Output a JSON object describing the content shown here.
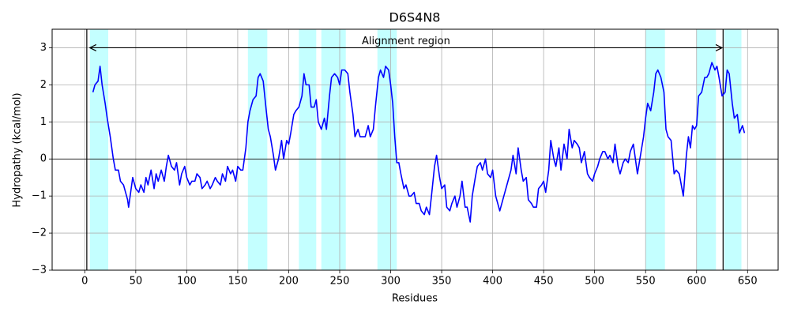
{
  "chart_data": {
    "type": "line",
    "title": "D6S4N8",
    "x_label": "Residues",
    "y_label": "Hydropathy (kcal/mol)",
    "x": [
      8,
      10,
      13,
      15,
      17,
      20,
      22,
      25,
      28,
      30,
      33,
      35,
      38,
      40,
      42,
      43,
      45,
      47,
      50,
      53,
      55,
      58,
      60,
      62,
      65,
      68,
      70,
      72,
      75,
      78,
      80,
      82,
      85,
      88,
      90,
      93,
      95,
      98,
      100,
      103,
      105,
      108,
      110,
      113,
      115,
      118,
      120,
      123,
      125,
      128,
      130,
      133,
      135,
      138,
      140,
      143,
      145,
      148,
      150,
      153,
      155,
      158,
      160,
      162,
      165,
      168,
      170,
      172,
      175,
      178,
      180,
      182,
      185,
      187,
      190,
      193,
      195,
      198,
      200,
      202,
      205,
      207,
      210,
      213,
      215,
      217,
      220,
      222,
      225,
      227,
      229,
      232,
      235,
      237,
      240,
      242,
      245,
      248,
      250,
      252,
      255,
      258,
      260,
      263,
      265,
      268,
      270,
      273,
      275,
      278,
      280,
      283,
      285,
      288,
      290,
      293,
      295,
      298,
      300,
      302,
      304,
      306,
      308,
      310,
      313,
      315,
      318,
      320,
      323,
      325,
      328,
      330,
      333,
      335,
      338,
      340,
      343,
      345,
      348,
      350,
      353,
      355,
      358,
      360,
      363,
      365,
      368,
      370,
      373,
      375,
      378,
      380,
      383,
      385,
      388,
      390,
      393,
      395,
      398,
      400,
      403,
      405,
      407,
      410,
      412,
      415,
      418,
      420,
      423,
      425,
      428,
      430,
      433,
      435,
      438,
      440,
      443,
      445,
      448,
      450,
      452,
      455,
      457,
      460,
      462,
      465,
      467,
      470,
      473,
      475,
      478,
      480,
      483,
      485,
      487,
      490,
      493,
      495,
      498,
      500,
      503,
      505,
      508,
      510,
      513,
      515,
      518,
      520,
      523,
      525,
      528,
      530,
      533,
      535,
      538,
      540,
      542,
      545,
      548,
      550,
      552,
      555,
      558,
      560,
      562,
      565,
      568,
      570,
      572,
      575,
      578,
      580,
      583,
      585,
      587,
      590,
      592,
      594,
      596,
      598,
      600,
      602,
      605,
      608,
      610,
      612,
      615,
      618,
      620,
      622,
      625,
      628,
      630,
      632,
      635,
      637,
      640,
      642,
      645,
      647
    ],
    "values": [
      1.8,
      2.0,
      2.1,
      2.5,
      2.0,
      1.5,
      1.1,
      0.6,
      0.0,
      -0.3,
      -0.3,
      -0.6,
      -0.7,
      -0.9,
      -1.1,
      -1.3,
      -0.9,
      -0.5,
      -0.8,
      -0.9,
      -0.7,
      -0.9,
      -0.5,
      -0.7,
      -0.3,
      -0.8,
      -0.4,
      -0.6,
      -0.3,
      -0.6,
      -0.2,
      0.1,
      -0.2,
      -0.3,
      -0.1,
      -0.7,
      -0.4,
      -0.2,
      -0.5,
      -0.7,
      -0.6,
      -0.6,
      -0.4,
      -0.5,
      -0.8,
      -0.7,
      -0.6,
      -0.8,
      -0.7,
      -0.5,
      -0.6,
      -0.7,
      -0.4,
      -0.6,
      -0.2,
      -0.4,
      -0.3,
      -0.6,
      -0.2,
      -0.3,
      -0.3,
      0.3,
      1.0,
      1.3,
      1.6,
      1.7,
      2.2,
      2.3,
      2.1,
      1.3,
      0.8,
      0.6,
      0.1,
      -0.3,
      0.0,
      0.5,
      0.0,
      0.5,
      0.4,
      0.7,
      1.2,
      1.3,
      1.4,
      1.7,
      2.3,
      2.0,
      2.0,
      1.4,
      1.4,
      1.6,
      1.0,
      0.8,
      1.1,
      0.8,
      1.7,
      2.2,
      2.3,
      2.2,
      2.0,
      2.4,
      2.4,
      2.3,
      1.8,
      1.2,
      0.6,
      0.8,
      0.6,
      0.6,
      0.6,
      0.9,
      0.6,
      0.8,
      1.4,
      2.2,
      2.4,
      2.2,
      2.5,
      2.4,
      2.0,
      1.5,
      0.6,
      -0.1,
      -0.1,
      -0.4,
      -0.8,
      -0.7,
      -1.0,
      -1.0,
      -0.9,
      -1.2,
      -1.2,
      -1.4,
      -1.5,
      -1.3,
      -1.5,
      -1.0,
      -0.2,
      0.1,
      -0.5,
      -0.8,
      -0.7,
      -1.3,
      -1.4,
      -1.2,
      -1.0,
      -1.3,
      -1.0,
      -0.6,
      -1.3,
      -1.3,
      -1.7,
      -1.0,
      -0.5,
      -0.2,
      -0.1,
      -0.3,
      0.0,
      -0.4,
      -0.5,
      -0.3,
      -1.0,
      -1.2,
      -1.4,
      -1.1,
      -0.9,
      -0.6,
      -0.3,
      0.1,
      -0.4,
      0.3,
      -0.3,
      -0.6,
      -0.5,
      -1.1,
      -1.2,
      -1.3,
      -1.3,
      -0.8,
      -0.7,
      -0.6,
      -0.9,
      -0.3,
      0.5,
      0.0,
      -0.2,
      0.3,
      -0.3,
      0.4,
      0.0,
      0.8,
      0.3,
      0.5,
      0.4,
      0.3,
      -0.1,
      0.2,
      -0.4,
      -0.5,
      -0.6,
      -0.4,
      -0.2,
      0.0,
      0.2,
      0.2,
      0.0,
      0.1,
      -0.1,
      0.4,
      -0.2,
      -0.4,
      -0.1,
      0.0,
      -0.1,
      0.2,
      0.4,
      0.0,
      -0.4,
      0.1,
      0.6,
      1.1,
      1.5,
      1.3,
      1.8,
      2.3,
      2.4,
      2.2,
      1.8,
      0.8,
      0.6,
      0.5,
      -0.4,
      -0.3,
      -0.4,
      -0.7,
      -1.0,
      0.1,
      0.6,
      0.3,
      0.9,
      0.8,
      0.9,
      1.7,
      1.8,
      2.2,
      2.2,
      2.3,
      2.6,
      2.4,
      2.5,
      2.2,
      1.7,
      1.8,
      2.4,
      2.3,
      1.5,
      1.1,
      1.2,
      0.7,
      0.9,
      0.7
    ],
    "color": "#0000ff",
    "spans": [
      [
        5,
        23
      ],
      [
        160,
        179
      ],
      [
        210,
        227
      ],
      [
        232,
        256
      ],
      [
        287,
        306
      ],
      [
        550,
        569
      ],
      [
        600,
        619
      ],
      [
        627,
        644
      ]
    ],
    "span_color": "#c4ffff",
    "vlines": [
      2,
      626
    ],
    "hline": 0,
    "annotation": {
      "text": "Alignment region",
      "x_start": 5,
      "x_end": 625,
      "y": 3
    },
    "xlim": [
      -32,
      680
    ],
    "ylim": [
      -3,
      3.5
    ],
    "xticks": [
      0,
      50,
      100,
      150,
      200,
      250,
      300,
      350,
      400,
      450,
      500,
      550,
      600,
      650
    ],
    "yticks": [
      {
        "value": -3,
        "label": "−3"
      },
      {
        "value": -2,
        "label": "−2"
      },
      {
        "value": -1,
        "label": "−1"
      },
      0,
      1,
      2,
      3
    ],
    "grid": true
  }
}
